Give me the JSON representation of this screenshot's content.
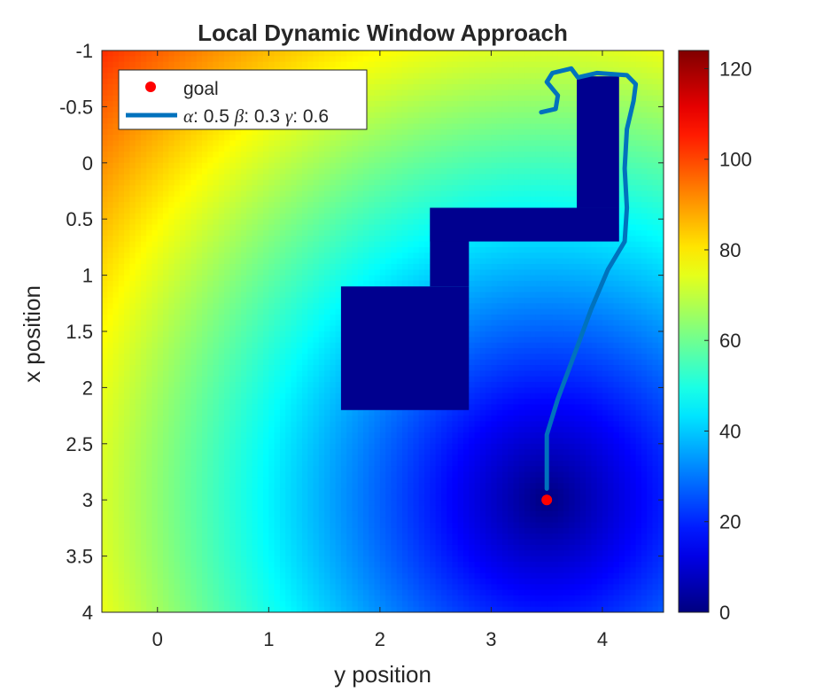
{
  "chart_data": {
    "type": "heatmap",
    "title": "Local Dynamic Window Approach",
    "xlabel": "y position",
    "ylabel": "x position",
    "xlim": [
      -0.5,
      4.55
    ],
    "ylim": [
      -1,
      4
    ],
    "y_reversed": true,
    "x_ticks": [
      {
        "value": 0,
        "label": "0"
      },
      {
        "value": 1,
        "label": "1"
      },
      {
        "value": 2,
        "label": "2"
      },
      {
        "value": 3,
        "label": "3"
      },
      {
        "value": 4,
        "label": "4"
      }
    ],
    "y_ticks": [
      {
        "value": -1,
        "label": "-1"
      },
      {
        "value": -0.5,
        "label": "-0.5"
      },
      {
        "value": 0,
        "label": "0"
      },
      {
        "value": 0.5,
        "label": "0.5"
      },
      {
        "value": 1,
        "label": "1"
      },
      {
        "value": 1.5,
        "label": "1.5"
      },
      {
        "value": 2,
        "label": "2"
      },
      {
        "value": 2.5,
        "label": "2.5"
      },
      {
        "value": 3,
        "label": "3"
      },
      {
        "value": 3.5,
        "label": "3.5"
      },
      {
        "value": 4,
        "label": "4"
      }
    ],
    "colormap": "jet",
    "colorbar": {
      "range": [
        0,
        124
      ],
      "ticks": [
        {
          "value": 0,
          "label": "0"
        },
        {
          "value": 20,
          "label": "20"
        },
        {
          "value": 40,
          "label": "40"
        },
        {
          "value": 60,
          "label": "60"
        },
        {
          "value": 80,
          "label": "80"
        },
        {
          "value": 100,
          "label": "100"
        },
        {
          "value": 120,
          "label": "120"
        }
      ]
    },
    "field": {
      "description_shown": "cost grows with distance from goal",
      "cell_size": 0.05,
      "max_value": 124
    },
    "obstacles": [
      {
        "y": [
          1.65,
          2.8
        ],
        "x": [
          1.1,
          2.2
        ]
      },
      {
        "y": [
          2.45,
          2.8
        ],
        "x": [
          0.4,
          1.1
        ]
      },
      {
        "y": [
          2.45,
          4.15
        ],
        "x": [
          0.4,
          0.7
        ]
      },
      {
        "y": [
          3.77,
          4.15
        ],
        "x": [
          -0.77,
          0.4
        ]
      }
    ],
    "goal": {
      "y": 3.5,
      "x": 3.0,
      "color": "#ff0000"
    },
    "trajectory": {
      "color": "#0072bd",
      "points": [
        [
          3.5,
          2.9
        ],
        [
          3.5,
          2.42
        ],
        [
          3.6,
          2.1
        ],
        [
          3.75,
          1.7
        ],
        [
          3.9,
          1.3
        ],
        [
          4.05,
          0.95
        ],
        [
          4.2,
          0.7
        ],
        [
          4.22,
          0.4
        ],
        [
          4.2,
          0.05
        ],
        [
          4.22,
          -0.3
        ],
        [
          4.28,
          -0.55
        ],
        [
          4.3,
          -0.7
        ],
        [
          4.22,
          -0.78
        ],
        [
          3.95,
          -0.8
        ],
        [
          3.78,
          -0.76
        ],
        [
          3.72,
          -0.84
        ],
        [
          3.55,
          -0.8
        ],
        [
          3.5,
          -0.72
        ],
        [
          3.6,
          -0.6
        ],
        [
          3.58,
          -0.48
        ],
        [
          3.45,
          -0.45
        ]
      ]
    },
    "legend": {
      "position": "top-left",
      "entries": [
        {
          "type": "marker",
          "label": "goal",
          "color": "#ff0000"
        },
        {
          "type": "line",
          "label_parts": [
            {
              "text": "α",
              "italic": true
            },
            {
              "text": ": 0.5 "
            },
            {
              "text": "β",
              "italic": true
            },
            {
              "text": ": 0.3 "
            },
            {
              "text": "γ",
              "italic": true
            },
            {
              "text": ": 0.6"
            }
          ],
          "color": "#0072bd"
        }
      ]
    }
  }
}
